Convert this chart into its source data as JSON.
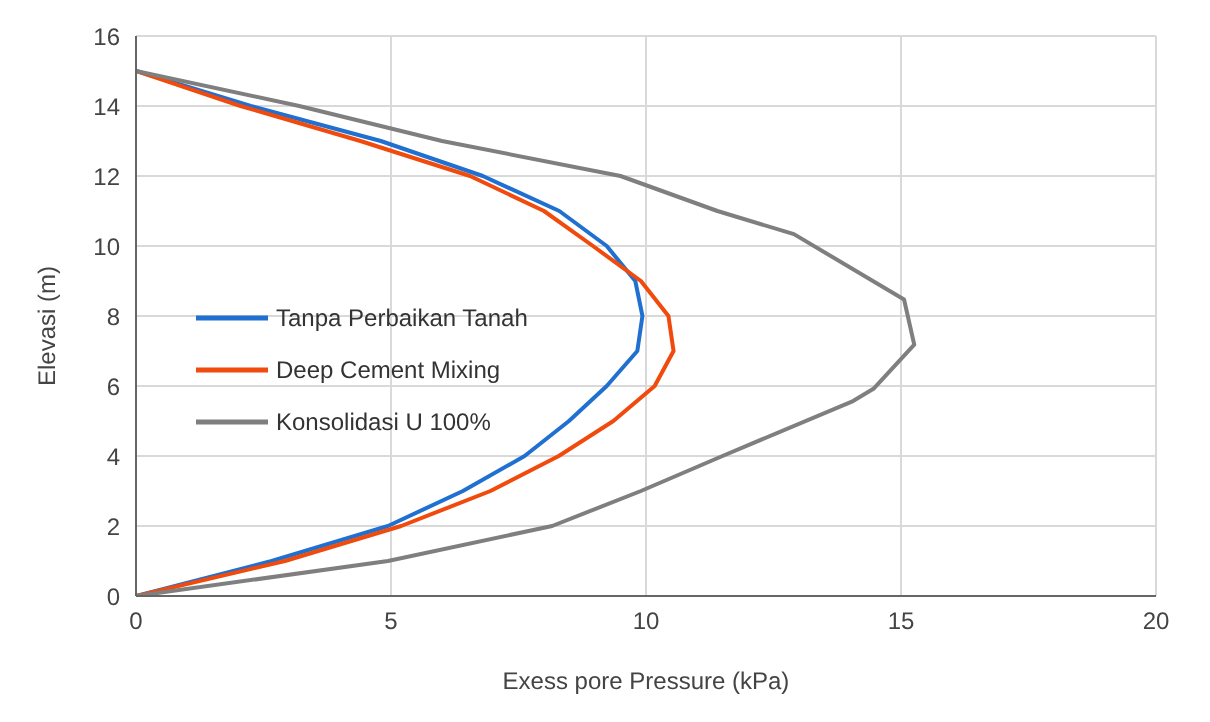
{
  "chart_data": {
    "type": "line",
    "xlabel": "Exess pore Pressure (kPa)",
    "ylabel": "Elevasi (m)",
    "xlim": [
      0,
      20
    ],
    "xticks": [
      0,
      5,
      10,
      15,
      20
    ],
    "ylim": [
      0,
      16
    ],
    "yticks": [
      0,
      2,
      4,
      6,
      8,
      10,
      12,
      14,
      16
    ],
    "grid": true,
    "legend": "left",
    "marker": "none",
    "line_style": "solid",
    "series": [
      {
        "name": "Tanpa Perbaikan Tanah",
        "color": "#1f70d0",
        "x": [
          0,
          2.66,
          4.94,
          6.41,
          7.62,
          8.49,
          9.23,
          9.83,
          9.93,
          9.79,
          9.23,
          8.3,
          6.8,
          4.8,
          2.25,
          0
        ],
        "values": [
          0,
          1,
          2,
          3,
          4,
          5,
          6,
          7,
          8,
          9,
          10,
          11,
          12,
          13,
          14,
          15
        ]
      },
      {
        "name": "Deep Cement Mixing",
        "color": "#f04a0c",
        "x": [
          0,
          2.92,
          5.2,
          6.95,
          8.29,
          9.36,
          10.17,
          10.54,
          10.44,
          9.9,
          8.96,
          8.0,
          6.55,
          4.4,
          2.05,
          0
        ],
        "values": [
          0,
          1,
          2,
          3,
          4,
          5,
          6,
          7,
          8,
          9,
          10,
          11,
          12,
          13,
          14,
          15
        ]
      },
      {
        "name": "Konsolidasi U 100%",
        "color": "#7f7f7f",
        "x": [
          0,
          4.94,
          8.16,
          9.9,
          11.5,
          14.06,
          14.46,
          15.26,
          15.06,
          12.9,
          11.4,
          9.5,
          6.0,
          3.2,
          0
        ],
        "values": [
          0,
          1,
          2,
          3,
          4,
          5.57,
          5.92,
          7.18,
          8.47,
          10.34,
          11,
          12,
          13,
          14,
          15
        ]
      }
    ]
  }
}
